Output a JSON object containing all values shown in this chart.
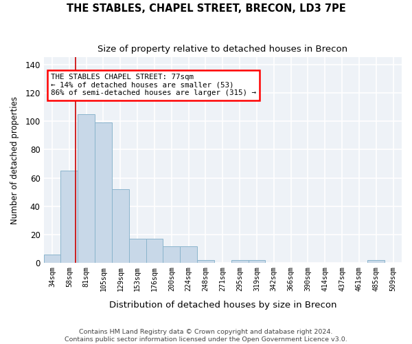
{
  "title": "THE STABLES, CHAPEL STREET, BRECON, LD3 7PE",
  "subtitle": "Size of property relative to detached houses in Brecon",
  "xlabel": "Distribution of detached houses by size in Brecon",
  "ylabel": "Number of detached properties",
  "bin_labels": [
    "34sqm",
    "58sqm",
    "81sqm",
    "105sqm",
    "129sqm",
    "153sqm",
    "176sqm",
    "200sqm",
    "224sqm",
    "248sqm",
    "271sqm",
    "295sqm",
    "319sqm",
    "342sqm",
    "366sqm",
    "390sqm",
    "414sqm",
    "437sqm",
    "461sqm",
    "485sqm",
    "509sqm"
  ],
  "bar_heights": [
    6,
    65,
    105,
    99,
    52,
    17,
    17,
    12,
    12,
    2,
    0,
    2,
    2,
    0,
    0,
    0,
    0,
    0,
    0,
    2,
    0
  ],
  "bar_color": "#c8d8e8",
  "bar_edge_color": "#8ab4cc",
  "background_color": "#eef2f7",
  "grid_color": "#ffffff",
  "red_line_x": 1.35,
  "annotation_line1": "THE STABLES CHAPEL STREET: 77sqm",
  "annotation_line2": "← 14% of detached houses are smaller (53)",
  "annotation_line3": "86% of semi-detached houses are larger (315) →",
  "ylim": [
    0,
    145
  ],
  "yticks": [
    0,
    20,
    40,
    60,
    80,
    100,
    120,
    140
  ],
  "footer_line1": "Contains HM Land Registry data © Crown copyright and database right 2024.",
  "footer_line2": "Contains public sector information licensed under the Open Government Licence v3.0."
}
